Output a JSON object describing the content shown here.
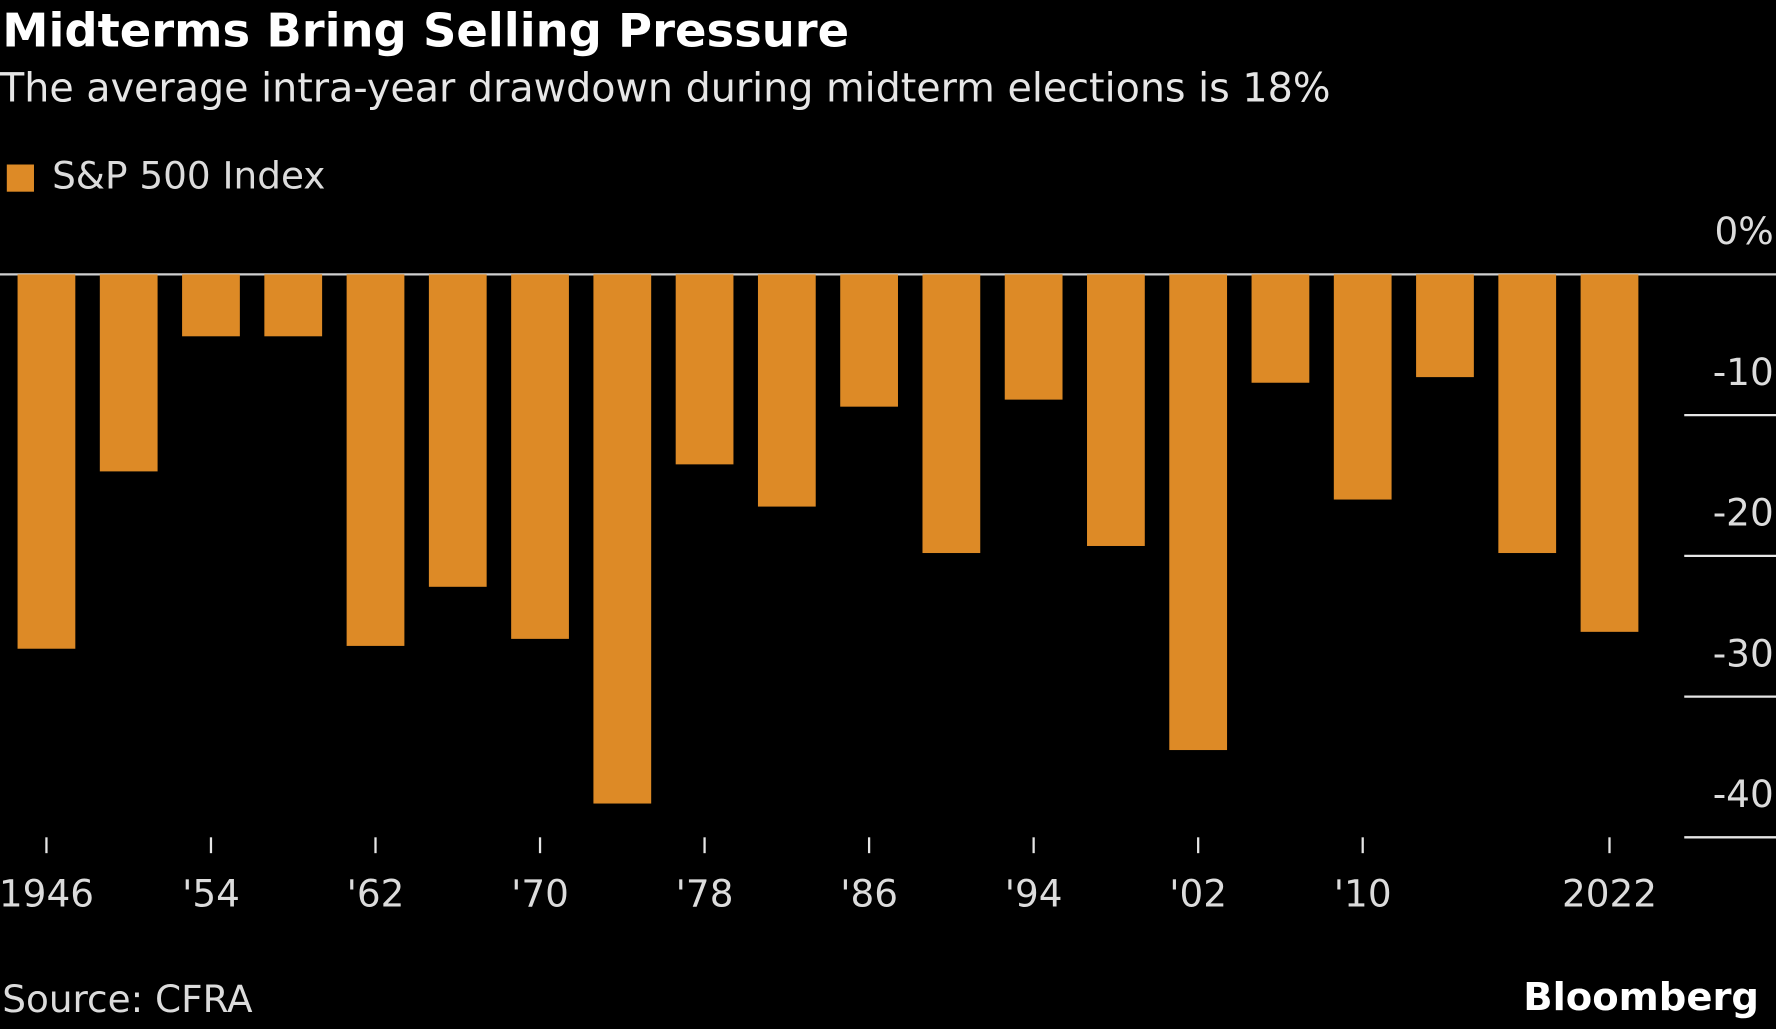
{
  "chart_data": {
    "type": "bar",
    "title": "Midterms Bring Selling Pressure",
    "subtitle": "The average intra-year drawdown during midterm elections is 18%",
    "source": "Source: CFRA",
    "credit": "Bloomberg",
    "categories": [
      "1946",
      null,
      "'54",
      null,
      "'62",
      null,
      "'70",
      null,
      "'78",
      null,
      "'86",
      null,
      "'94",
      null,
      "'02",
      null,
      "'10",
      null,
      null,
      "2022"
    ],
    "series": [
      {
        "name": "S&P 500 Index",
        "color": "#dd8a26",
        "values": [
          -26.6,
          -14.0,
          -4.4,
          -4.4,
          -26.4,
          -22.2,
          -25.9,
          -37.6,
          -13.5,
          -16.5,
          -9.4,
          -19.8,
          -8.9,
          -19.3,
          -33.8,
          -7.7,
          -16.0,
          -7.3,
          -19.8,
          -25.4
        ]
      }
    ],
    "ylim": [
      -40,
      0
    ],
    "yticks": [
      {
        "value": 0,
        "label": "0%"
      },
      -10,
      -20,
      -30,
      -40
    ],
    "y_axis_side": "right"
  }
}
